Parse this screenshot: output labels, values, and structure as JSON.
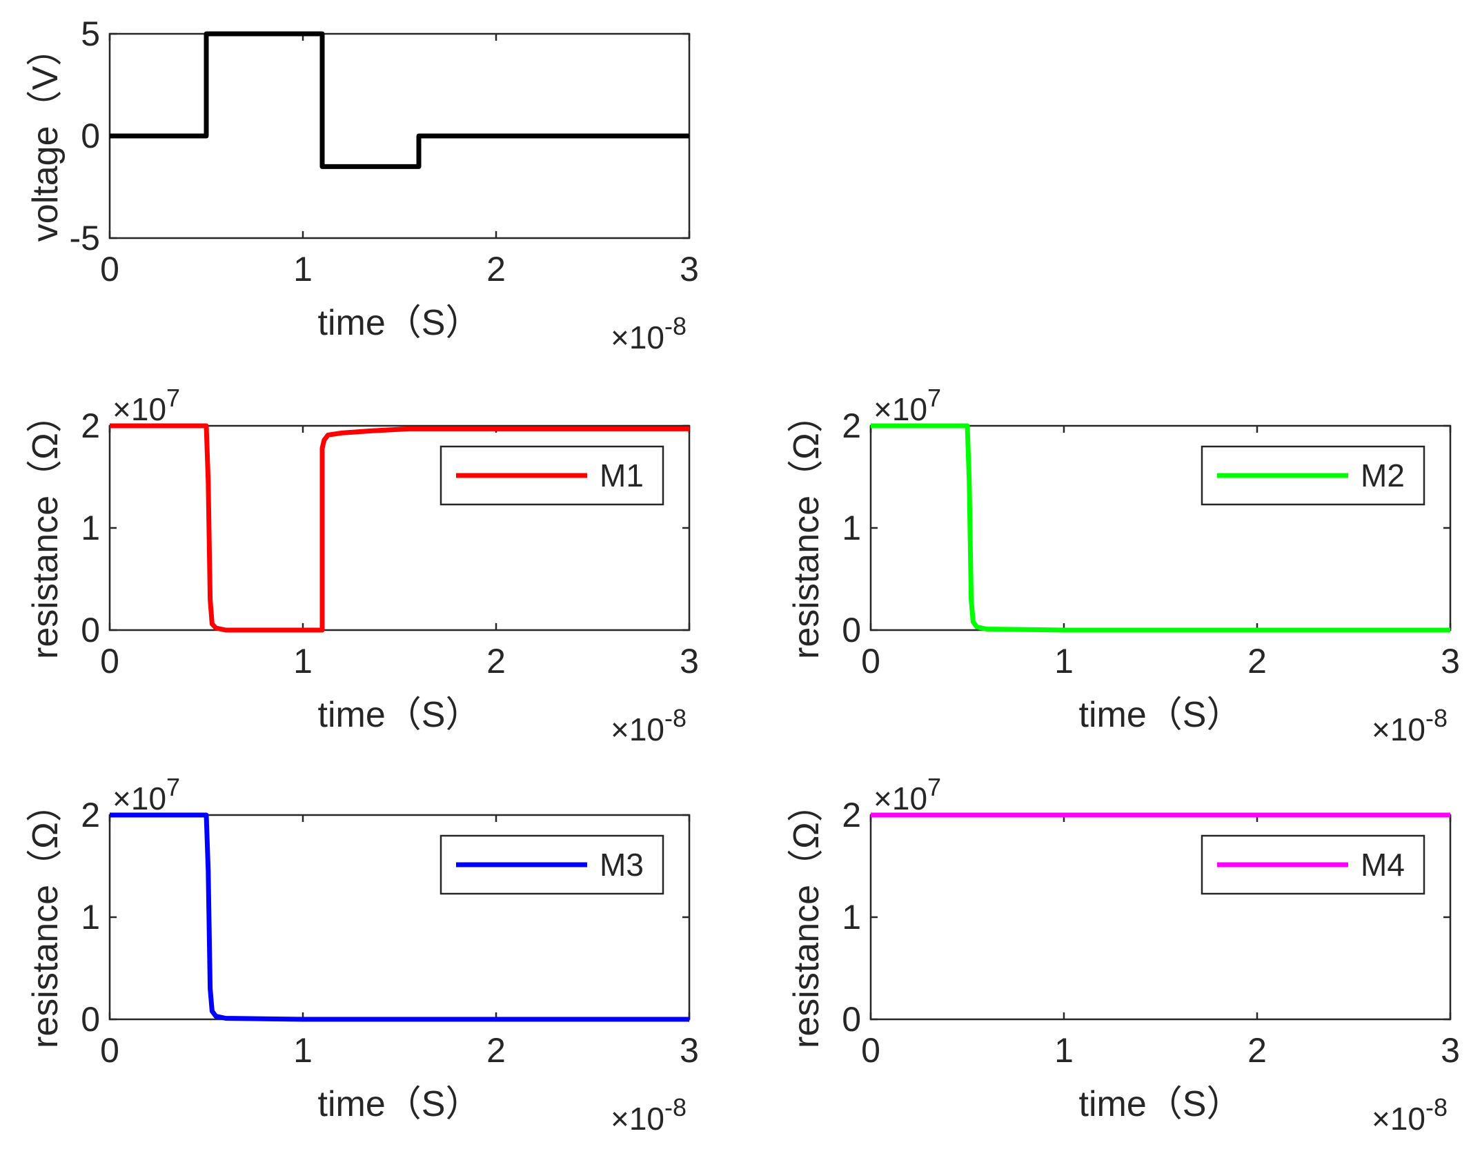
{
  "chart_data": [
    {
      "id": "voltage",
      "type": "line",
      "xlabel": "time（S）",
      "ylabel": "voltage（V）",
      "xlim": [
        0,
        3
      ],
      "ylim": [
        -5,
        5
      ],
      "x_ticks": [
        "0",
        "1",
        "2",
        "3"
      ],
      "y_ticks": [
        "-5",
        "0",
        "5"
      ],
      "x_exponent": "-8",
      "y_exponent": null,
      "legend": null,
      "series": [
        {
          "name": "voltage",
          "color": "#000000",
          "x": [
            0,
            0.5,
            0.5,
            1.1,
            1.1,
            1.6,
            1.6,
            3.0
          ],
          "y": [
            0,
            0,
            5,
            5,
            -1.5,
            -1.5,
            0,
            0
          ]
        }
      ]
    },
    {
      "id": "m1",
      "type": "line",
      "xlabel": "time（S）",
      "ylabel": "resistance（Ω）",
      "xlim": [
        0,
        3
      ],
      "ylim": [
        0,
        2
      ],
      "x_ticks": [
        "0",
        "1",
        "2",
        "3"
      ],
      "y_ticks": [
        "0",
        "1",
        "2"
      ],
      "x_exponent": "-8",
      "y_exponent": "7",
      "legend": "M1",
      "series": [
        {
          "name": "M1",
          "color": "#ff0000",
          "x": [
            0,
            0.5,
            0.51,
            0.52,
            0.53,
            0.55,
            0.6,
            1.1,
            1.1,
            1.11,
            1.13,
            1.2,
            1.35,
            1.55,
            2.0,
            3.0
          ],
          "y": [
            2.0,
            2.0,
            1.45,
            0.3,
            0.06,
            0.02,
            0.0,
            0.0,
            1.78,
            1.86,
            1.91,
            1.93,
            1.95,
            1.97,
            1.97,
            1.97
          ]
        }
      ]
    },
    {
      "id": "m2",
      "type": "line",
      "xlabel": "time（S）",
      "ylabel": "resistance（Ω）",
      "xlim": [
        0,
        3
      ],
      "ylim": [
        0,
        2
      ],
      "x_ticks": [
        "0",
        "1",
        "2",
        "3"
      ],
      "y_ticks": [
        "0",
        "1",
        "2"
      ],
      "x_exponent": "-8",
      "y_exponent": "7",
      "legend": "M2",
      "series": [
        {
          "name": "M2",
          "color": "#00ff00",
          "x": [
            0,
            0.5,
            0.51,
            0.52,
            0.53,
            0.55,
            0.6,
            1.0,
            2.0,
            3.0
          ],
          "y": [
            2.0,
            2.0,
            1.45,
            0.3,
            0.08,
            0.03,
            0.01,
            0.0,
            0.0,
            0.0
          ]
        }
      ]
    },
    {
      "id": "m3",
      "type": "line",
      "xlabel": "time（S）",
      "ylabel": "resistance（Ω）",
      "xlim": [
        0,
        3
      ],
      "ylim": [
        0,
        2
      ],
      "x_ticks": [
        "0",
        "1",
        "2",
        "3"
      ],
      "y_ticks": [
        "0",
        "1",
        "2"
      ],
      "x_exponent": "-8",
      "y_exponent": "7",
      "legend": "M3",
      "series": [
        {
          "name": "M3",
          "color": "#0000ff",
          "x": [
            0,
            0.5,
            0.51,
            0.52,
            0.53,
            0.55,
            0.6,
            1.0,
            2.0,
            3.0
          ],
          "y": [
            2.0,
            2.0,
            1.45,
            0.3,
            0.08,
            0.03,
            0.01,
            0.0,
            0.0,
            0.0
          ]
        }
      ]
    },
    {
      "id": "m4",
      "type": "line",
      "xlabel": "time（S）",
      "ylabel": "resistance（Ω）",
      "xlim": [
        0,
        3
      ],
      "ylim": [
        0,
        2
      ],
      "x_ticks": [
        "0",
        "1",
        "2",
        "3"
      ],
      "y_ticks": [
        "0",
        "1",
        "2"
      ],
      "x_exponent": "-8",
      "y_exponent": "7",
      "legend": "M4",
      "series": [
        {
          "name": "M4",
          "color": "#ff00ff",
          "x": [
            0,
            3.0
          ],
          "y": [
            2.0,
            2.0
          ]
        }
      ]
    }
  ]
}
